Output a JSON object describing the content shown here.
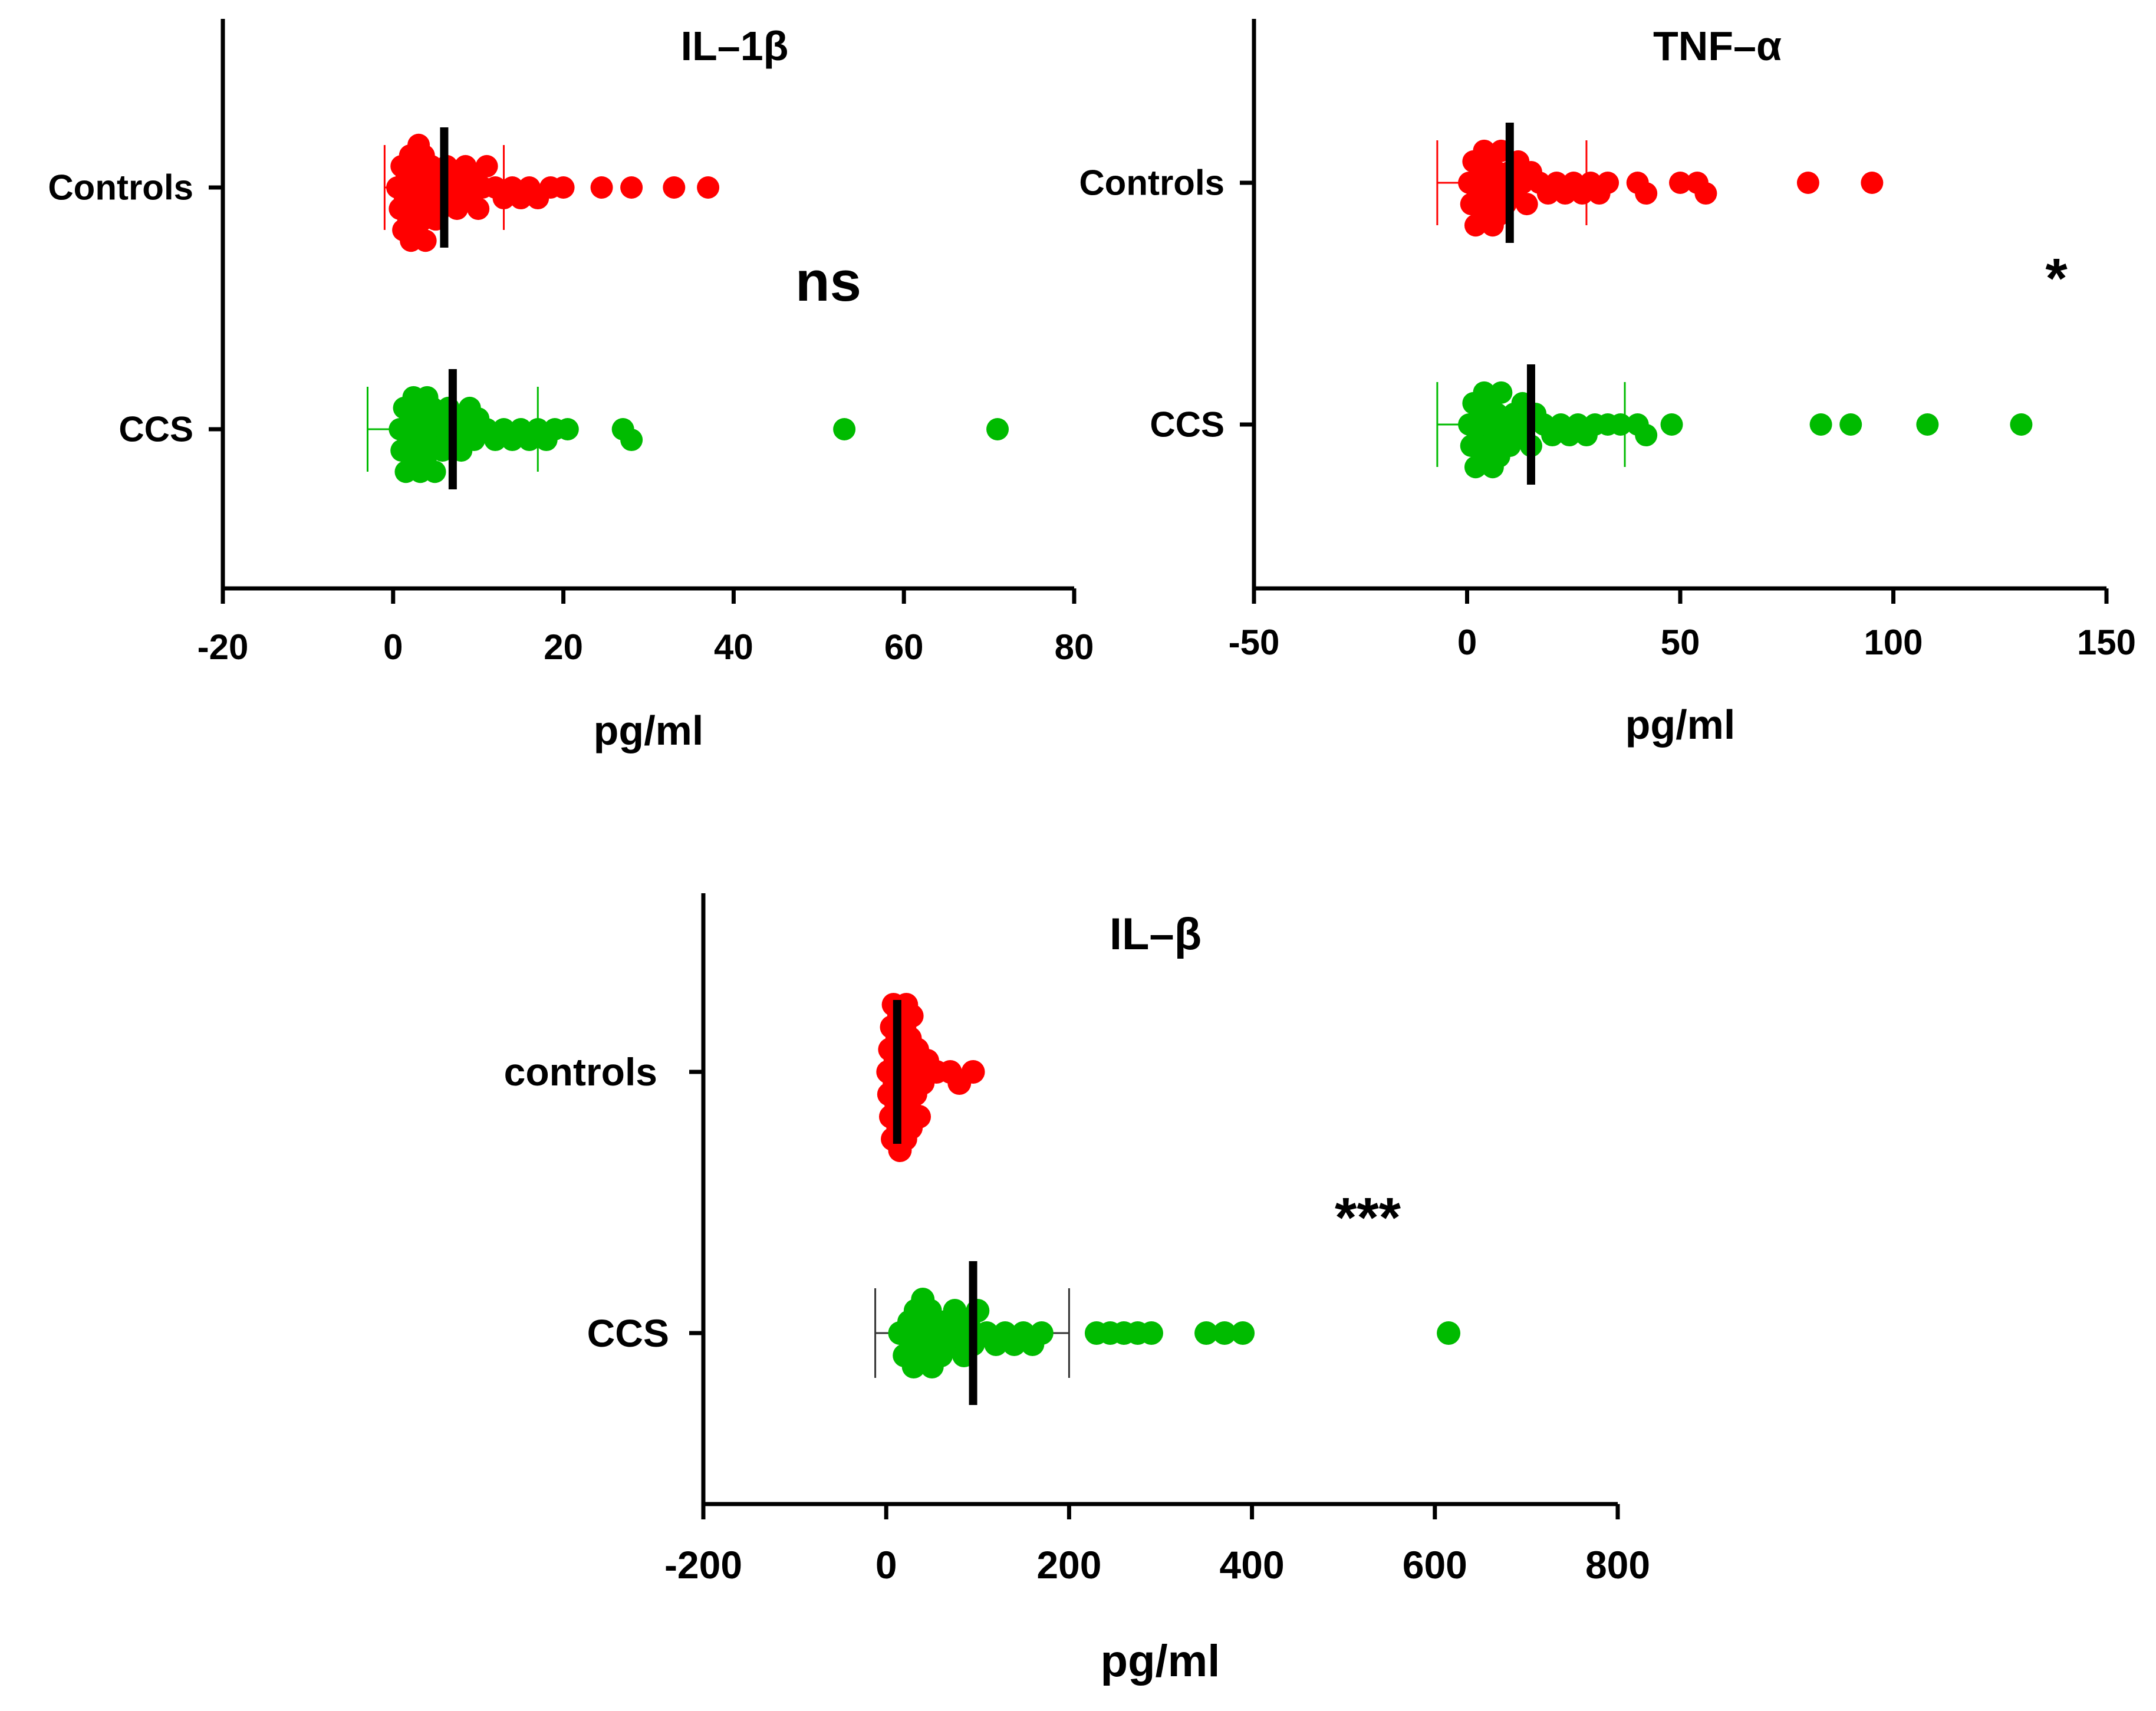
{
  "chart_data": [
    {
      "id": "il1b",
      "type": "scatter",
      "orientation": "horizontal",
      "title": "IL–1β",
      "xlabel": "pg/ml",
      "xlim": [
        -20,
        80
      ],
      "xticks": [
        -20,
        0,
        20,
        40,
        60,
        80
      ],
      "categories": [
        "Controls",
        "CCS"
      ],
      "significance": "ns",
      "series": [
        {
          "name": "Controls",
          "color": "#ff0000",
          "mean": 6,
          "sd_low": -1,
          "sd_high": 13,
          "values": [
            0.5,
            0.8,
            1,
            1.2,
            1.4,
            1.6,
            1.8,
            2,
            2.1,
            2.3,
            2.5,
            2.6,
            2.8,
            3,
            3.1,
            3.3,
            3.5,
            3.6,
            3.8,
            4,
            4.2,
            4.5,
            4.8,
            5,
            5.3,
            5.6,
            6,
            6.3,
            6.7,
            7,
            7.5,
            8,
            8.5,
            9,
            9.5,
            10,
            10.5,
            11,
            12,
            13,
            14,
            15,
            16,
            17,
            18.5,
            20,
            24.5,
            28,
            33,
            37
          ]
        },
        {
          "name": "CCS",
          "color": "#00bb00",
          "mean": 7,
          "sd_low": -3,
          "sd_high": 17,
          "values": [
            0.8,
            1,
            1.3,
            1.5,
            1.8,
            2,
            2.2,
            2.4,
            2.6,
            2.8,
            3,
            3.2,
            3.4,
            3.6,
            3.8,
            4,
            4.2,
            4.4,
            4.6,
            4.9,
            5.2,
            5.5,
            5.8,
            6.1,
            6.5,
            7,
            7.5,
            8,
            8.5,
            9,
            9.5,
            10,
            11,
            12,
            13,
            14,
            15,
            16,
            17,
            18,
            19,
            20.5,
            27,
            28,
            53,
            71
          ]
        }
      ]
    },
    {
      "id": "tnfa",
      "type": "scatter",
      "orientation": "horizontal",
      "title": "TNF–α",
      "xlabel": "pg/ml",
      "xlim": [
        -50,
        150
      ],
      "xticks": [
        -50,
        0,
        50,
        100,
        150
      ],
      "categories": [
        "Controls",
        "CCS"
      ],
      "significance": "*",
      "series": [
        {
          "name": "Controls",
          "color": "#ff0000",
          "mean": 10,
          "sd_low": -7,
          "sd_high": 28,
          "values": [
            0.5,
            1,
            1.5,
            2,
            2.5,
            3,
            3.5,
            4,
            4.5,
            5,
            5.5,
            6,
            6.5,
            7,
            7.5,
            8,
            8.5,
            9,
            10,
            11,
            12,
            13,
            14,
            15,
            17,
            19,
            21,
            23,
            25,
            27,
            29,
            31,
            33,
            40,
            42,
            50,
            54,
            56,
            80,
            95
          ]
        },
        {
          "name": "CCS",
          "color": "#00bb00",
          "mean": 15,
          "sd_low": -7,
          "sd_high": 37,
          "values": [
            0.5,
            1,
            1.5,
            2,
            2.5,
            3,
            3.5,
            4,
            4.5,
            5,
            5.5,
            6,
            6.5,
            7,
            7.5,
            8,
            9,
            10,
            11,
            12,
            13,
            14,
            15,
            16,
            18,
            20,
            22,
            24,
            26,
            28,
            30,
            33,
            36,
            40,
            42,
            48,
            83,
            90,
            108,
            130
          ]
        }
      ]
    },
    {
      "id": "ilb",
      "type": "scatter",
      "orientation": "horizontal",
      "title": "IL–β",
      "xlabel": "pg/ml",
      "xlim": [
        -200,
        800
      ],
      "xticks": [
        -200,
        0,
        200,
        400,
        600,
        800
      ],
      "categories": [
        "controls",
        "CCS"
      ],
      "significance": "***",
      "series": [
        {
          "name": "controls",
          "color": "#ff0000",
          "mean": 12,
          "sd_low": 5,
          "sd_high": 30,
          "values": [
            2,
            3,
            4,
            5,
            6,
            7,
            8,
            9,
            10,
            11,
            12,
            13,
            14,
            15,
            16,
            17,
            18,
            19,
            20,
            21,
            22,
            23,
            24,
            25,
            26,
            27,
            28,
            30,
            32,
            34,
            36,
            40,
            45,
            55,
            70,
            80,
            95
          ]
        },
        {
          "name": "CCS",
          "color": "#00bb00",
          "mean": 95,
          "sd_low": -12,
          "sd_high": 200,
          "values": [
            15,
            20,
            25,
            28,
            30,
            32,
            35,
            38,
            40,
            42,
            45,
            48,
            50,
            55,
            60,
            65,
            70,
            75,
            80,
            85,
            90,
            95,
            100,
            110,
            120,
            130,
            140,
            150,
            160,
            170,
            230,
            245,
            260,
            275,
            290,
            350,
            370,
            390,
            615
          ]
        }
      ]
    }
  ]
}
